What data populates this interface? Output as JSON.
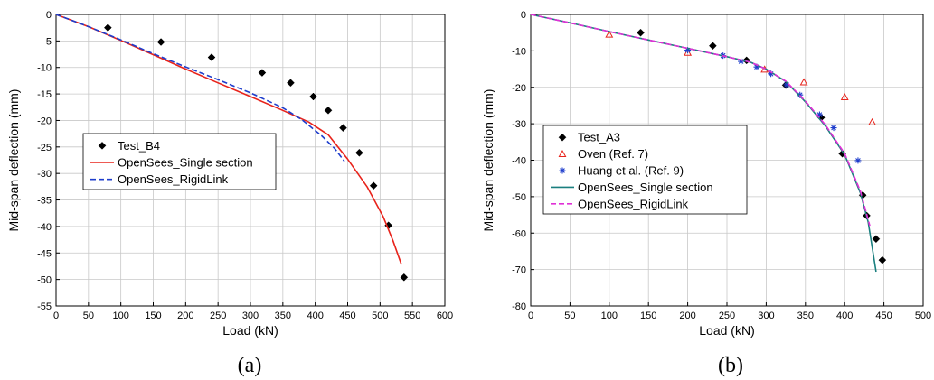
{
  "chart_data": [
    {
      "type": "line",
      "panel_label": "(a)",
      "xlabel": "Load (kN)",
      "ylabel": "Mid-span deflection (mm)",
      "xlim": [
        0,
        600
      ],
      "ylim": [
        -55,
        0
      ],
      "xticks": [
        "0",
        "50",
        "100",
        "150",
        "200",
        "250",
        "300",
        "350",
        "400",
        "450",
        "500",
        "550",
        "600"
      ],
      "yticks": [
        "0",
        "-5",
        "-10",
        "-15",
        "-20",
        "-25",
        "-30",
        "-35",
        "-40",
        "-45",
        "-50",
        "-55"
      ],
      "grid": true,
      "legend_position": "middle-left",
      "series": [
        {
          "name": "Test_B4",
          "style": "diamond",
          "color": "#000000",
          "x": [
            80,
            162,
            240,
            318,
            362,
            397,
            420,
            443,
            468,
            490,
            513,
            537
          ],
          "y": [
            -2.5,
            -5.2,
            -8.1,
            -11,
            -12.9,
            -15.5,
            -18.1,
            -21.4,
            -26.1,
            -32.3,
            -39.8,
            -49.6
          ]
        },
        {
          "name": "OpenSees_Single section",
          "style": "solid",
          "color": "#e8231b",
          "x": [
            0,
            50,
            100,
            150,
            200,
            250,
            300,
            350,
            390,
            420,
            450,
            480,
            505,
            520,
            533
          ],
          "y": [
            0,
            -2.3,
            -4.9,
            -7.6,
            -10.3,
            -12.9,
            -15.5,
            -18.1,
            -20.3,
            -22.7,
            -27.3,
            -32.5,
            -38.2,
            -42.7,
            -47.2
          ]
        },
        {
          "name": "OpenSees_RigidLink",
          "style": "dashed",
          "color": "#1e3dcc",
          "x": [
            0,
            50,
            100,
            150,
            200,
            250,
            300,
            350,
            380,
            410,
            430,
            445
          ],
          "y": [
            0,
            -2.3,
            -4.8,
            -7.4,
            -9.9,
            -12.3,
            -14.8,
            -17.6,
            -19.9,
            -22.9,
            -25.3,
            -27.7
          ]
        }
      ]
    },
    {
      "type": "line",
      "panel_label": "(b)",
      "xlabel": "Load (kN)",
      "ylabel": "Mid-span deflection (mm)",
      "xlim": [
        0,
        500
      ],
      "ylim": [
        -80,
        0
      ],
      "xticks": [
        "0",
        "50",
        "100",
        "150",
        "200",
        "250",
        "300",
        "350",
        "400",
        "450",
        "500"
      ],
      "yticks": [
        "0",
        "-10",
        "-20",
        "-30",
        "-40",
        "-50",
        "-60",
        "-70",
        "-80"
      ],
      "grid": true,
      "legend_position": "bottom-left",
      "series": [
        {
          "name": "Test_A3",
          "style": "diamond",
          "color": "#000000",
          "x": [
            140,
            232,
            275,
            325,
            370,
            397,
            423,
            428,
            440,
            448
          ],
          "y": [
            -5,
            -8.6,
            -12.6,
            -19.4,
            -28.3,
            -38.2,
            -49.6,
            -55.2,
            -61.6,
            -67.4
          ]
        },
        {
          "name": "Oven (Ref. 7)",
          "style": "triangle",
          "color": "#e8231b",
          "x": [
            100,
            200,
            298,
            348,
            400,
            435
          ],
          "y": [
            -5.5,
            -10.5,
            -15.1,
            -18.6,
            -22.7,
            -29.6
          ]
        },
        {
          "name": "Huang et al. (Ref. 9)",
          "style": "asterisk",
          "color": "#1e3dcc",
          "x": [
            200,
            245,
            268,
            288,
            306,
            326,
            343,
            368,
            386,
            417
          ],
          "y": [
            -9.8,
            -11.3,
            -12.9,
            -14.4,
            -16.3,
            -19.3,
            -22.1,
            -27.5,
            -31.1,
            -40.1
          ]
        },
        {
          "name": "OpenSees_Single section",
          "style": "solid",
          "color": "#1a7f7f",
          "x": [
            0,
            50,
            100,
            150,
            200,
            250,
            280,
            300,
            325,
            350,
            375,
            400,
            420,
            430,
            440
          ],
          "y": [
            0,
            -2.3,
            -4.7,
            -7,
            -9.3,
            -11.6,
            -13.1,
            -15,
            -18.4,
            -24,
            -30.5,
            -38.5,
            -49,
            -57,
            -70.6
          ]
        },
        {
          "name": "OpenSees_RigidLink",
          "style": "dashed",
          "color": "#e030d6",
          "x": [
            0,
            50,
            100,
            150,
            200,
            250,
            280,
            300,
            325,
            350,
            375,
            400,
            420,
            432
          ],
          "y": [
            0,
            -2.3,
            -4.7,
            -7,
            -9.3,
            -11.6,
            -13.1,
            -15,
            -18.3,
            -23.8,
            -30.2,
            -38.2,
            -48.5,
            -58
          ]
        }
      ]
    }
  ]
}
